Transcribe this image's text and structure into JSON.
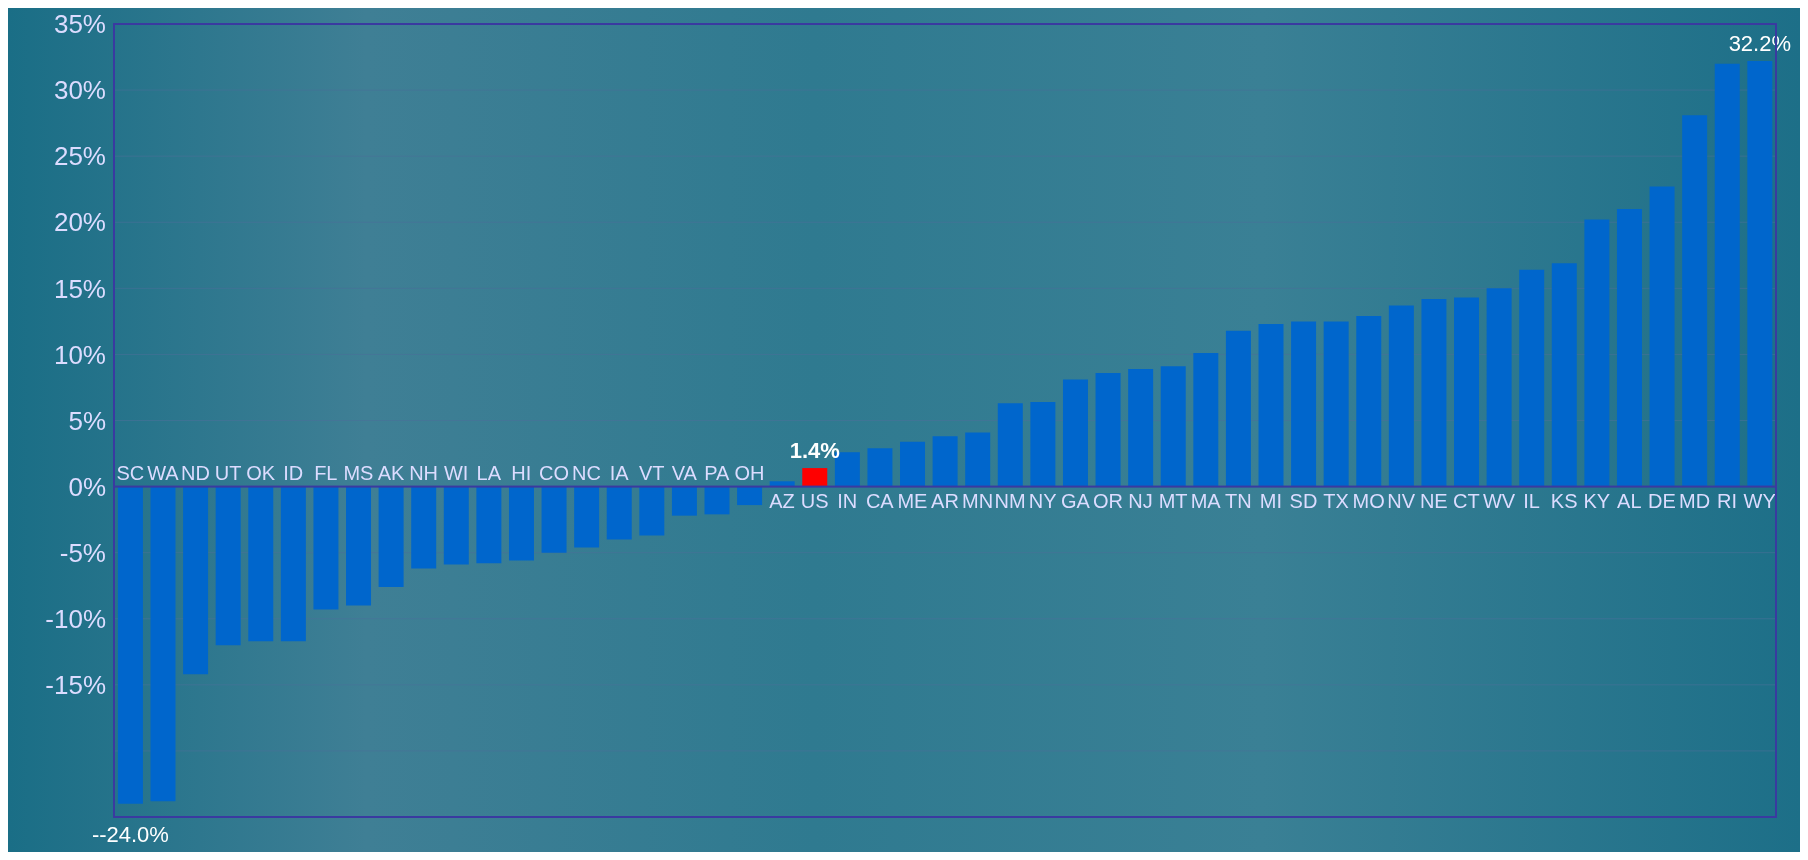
{
  "chart_data": {
    "type": "bar",
    "categories": [
      "SC",
      "WA",
      "ND",
      "UT",
      "OK",
      "ID",
      "FL",
      "MS",
      "AK",
      "NH",
      "WI",
      "LA",
      "HI",
      "CO",
      "NC",
      "IA",
      "VT",
      "VA",
      "PA",
      "OH",
      "AZ",
      "US",
      "IN",
      "CA",
      "ME",
      "AR",
      "MN",
      "NM",
      "NY",
      "GA",
      "OR",
      "NJ",
      "MT",
      "MA",
      "TN",
      "MI",
      "SD",
      "TX",
      "MO",
      "NV",
      "NE",
      "CT",
      "WV",
      "IL",
      "KS",
      "KY",
      "AL",
      "DE",
      "MD",
      "RI",
      "WY"
    ],
    "values": [
      -24.0,
      -23.8,
      -14.2,
      -12.0,
      -11.7,
      -11.7,
      -9.3,
      -9.0,
      -7.6,
      -6.2,
      -5.9,
      -5.8,
      -5.6,
      -5.0,
      -4.6,
      -4.0,
      -3.7,
      -2.2,
      -2.1,
      -1.4,
      0.4,
      1.4,
      2.6,
      2.9,
      3.4,
      3.8,
      4.1,
      6.3,
      6.4,
      8.1,
      8.6,
      8.9,
      9.1,
      10.1,
      11.8,
      12.3,
      12.5,
      12.5,
      12.9,
      13.7,
      14.2,
      14.3,
      15.0,
      16.4,
      16.9,
      20.2,
      21.0,
      22.7,
      28.1,
      32.0,
      32.2
    ],
    "colors": [
      "#0066cc",
      "#0066cc",
      "#0066cc",
      "#0066cc",
      "#0066cc",
      "#0066cc",
      "#0066cc",
      "#0066cc",
      "#0066cc",
      "#0066cc",
      "#0066cc",
      "#0066cc",
      "#0066cc",
      "#0066cc",
      "#0066cc",
      "#0066cc",
      "#0066cc",
      "#0066cc",
      "#0066cc",
      "#0066cc",
      "#0066cc",
      "#ff0000",
      "#0066cc",
      "#0066cc",
      "#0066cc",
      "#0066cc",
      "#0066cc",
      "#0066cc",
      "#0066cc",
      "#0066cc",
      "#0066cc",
      "#0066cc",
      "#0066cc",
      "#0066cc",
      "#0066cc",
      "#0066cc",
      "#0066cc",
      "#0066cc",
      "#0066cc",
      "#0066cc",
      "#0066cc",
      "#0066cc",
      "#0066cc",
      "#0066cc",
      "#0066cc",
      "#0066cc",
      "#0066cc",
      "#0066cc",
      "#0066cc",
      "#0066cc",
      "#0066cc"
    ],
    "value_labels": [
      "--24.0%",
      null,
      null,
      null,
      null,
      null,
      null,
      null,
      null,
      null,
      null,
      null,
      null,
      null,
      null,
      null,
      null,
      null,
      null,
      null,
      null,
      "1.4%",
      null,
      null,
      null,
      null,
      null,
      null,
      null,
      null,
      null,
      null,
      null,
      null,
      null,
      null,
      null,
      null,
      null,
      null,
      null,
      null,
      null,
      null,
      null,
      null,
      null,
      null,
      null,
      null,
      "32.2%"
    ],
    "ylim": [
      -25,
      35
    ],
    "yticks": [
      {
        "value": 35,
        "label": "35%"
      },
      {
        "value": 30,
        "label": "30%"
      },
      {
        "value": 25,
        "label": "25%"
      },
      {
        "value": 20,
        "label": "20%"
      },
      {
        "value": 15,
        "label": "15%"
      },
      {
        "value": 10,
        "label": "10%"
      },
      {
        "value": 5,
        "label": "5%"
      },
      {
        "value": 0,
        "label": "0%"
      },
      {
        "value": -5,
        "label": "-5%"
      },
      {
        "value": -10,
        "label": "-10%"
      },
      {
        "value": -15,
        "label": "-15%"
      },
      {
        "value": -20,
        "label": null
      }
    ],
    "grid": "y"
  }
}
